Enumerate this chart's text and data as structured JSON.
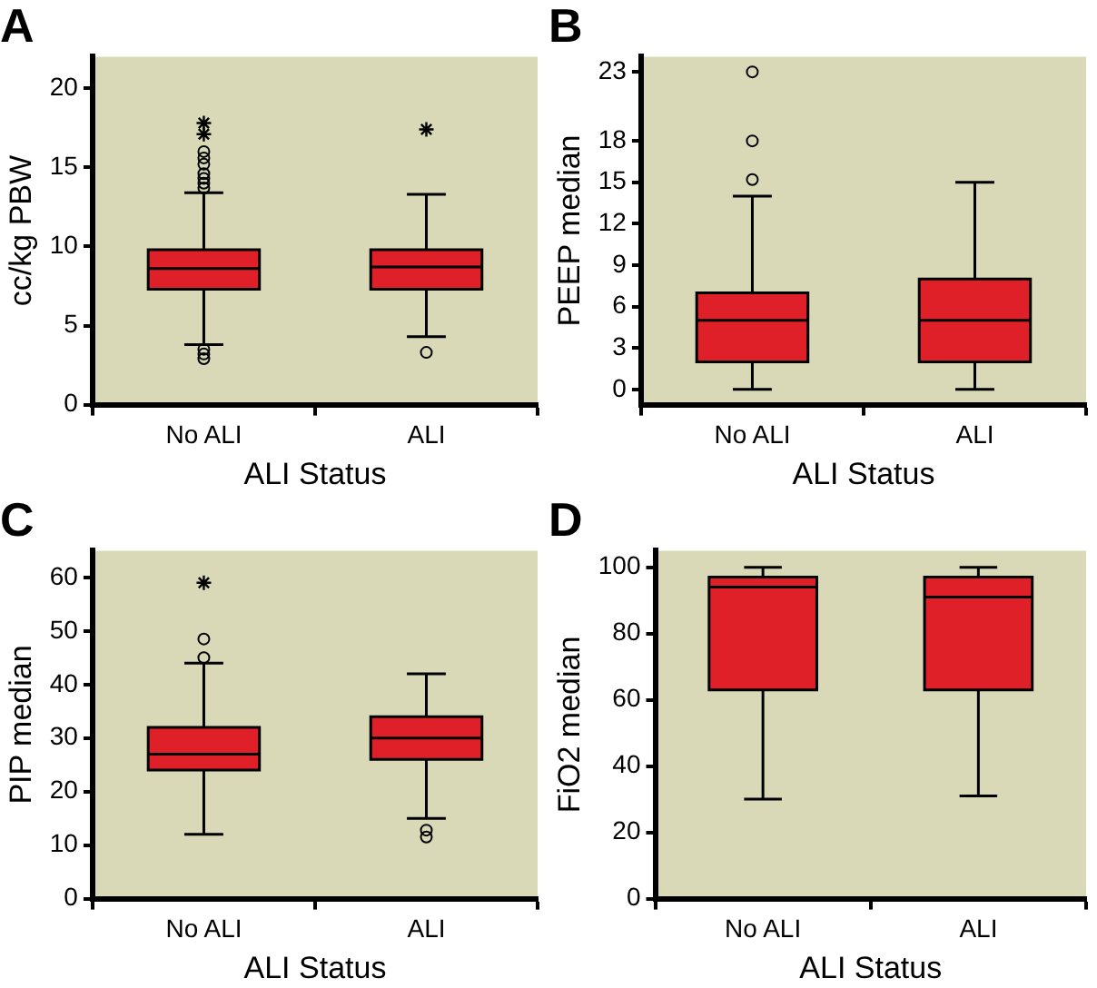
{
  "chart_data": [
    {
      "type": "box",
      "title": "A",
      "xlabel": "ALI Status",
      "ylabel": "cc/kg PBW",
      "categories": [
        "No ALI",
        "ALI"
      ],
      "ylim": [
        0,
        22
      ],
      "yticks": [
        0,
        5,
        10,
        15,
        20
      ],
      "grid": false,
      "marker": "circle",
      "series": [
        {
          "color": "#e02028",
          "boxes": [
            {
              "low": 3.8,
              "q1": 7.3,
              "median": 8.6,
              "q3": 9.8,
              "high": 13.4,
              "outliers": [
                13.7,
                14,
                14.3,
                14.6,
                15.2,
                15.6,
                16,
                3.5,
                3.2,
                2.9
              ]
            },
            {
              "low": 4.3,
              "q1": 7.3,
              "median": 8.7,
              "q3": 9.8,
              "high": 13.3,
              "outliers": [
                3.3
              ]
            }
          ]
        },
        {
          "type": "scatter",
          "marker": "cross",
          "color": "#000000",
          "x": [
            "No ALI",
            "No ALI",
            "ALI"
          ],
          "values": [
            17.1,
            17.8,
            17.4
          ]
        }
      ]
    },
    {
      "type": "box",
      "title": "B",
      "xlabel": "ALI Status",
      "ylabel": "PEEP median",
      "categories": [
        "No ALI",
        "ALI"
      ],
      "ylim": [
        -1.1,
        24.1
      ],
      "yticks": [
        0,
        3,
        6,
        9,
        12,
        15,
        18,
        23
      ],
      "grid": false,
      "marker": "circle",
      "series": [
        {
          "color": "#e02028",
          "boxes": [
            {
              "low": 0,
              "q1": 2,
              "median": 5,
              "q3": 7,
              "high": 14,
              "outliers": [
                15.2,
                18,
                23
              ]
            },
            {
              "low": 0,
              "q1": 2,
              "median": 5,
              "q3": 8,
              "high": 15
            }
          ]
        }
      ]
    },
    {
      "type": "box",
      "title": "C",
      "xlabel": "ALI Status",
      "ylabel": "PIP median",
      "categories": [
        "No ALI",
        "ALI"
      ],
      "ylim": [
        0,
        65
      ],
      "yticks": [
        0,
        10,
        20,
        30,
        40,
        50,
        60
      ],
      "grid": false,
      "marker": "circle",
      "series": [
        {
          "color": "#e02028",
          "boxes": [
            {
              "low": 12,
              "q1": 24,
              "median": 27,
              "q3": 32,
              "high": 44,
              "outliers": [
                45,
                48.5
              ]
            },
            {
              "low": 15,
              "q1": 26,
              "median": 30,
              "q3": 34,
              "high": 42,
              "outliers": [
                11.5,
                12.8
              ]
            }
          ]
        },
        {
          "type": "scatter",
          "marker": "cross",
          "color": "#000000",
          "x": [
            "No ALI"
          ],
          "values": [
            59
          ]
        }
      ]
    },
    {
      "type": "box",
      "title": "D",
      "xlabel": "ALI Status",
      "ylabel": "FiO2 median",
      "categories": [
        "No ALI",
        "ALI"
      ],
      "ylim": [
        0,
        105
      ],
      "yticks": [
        0,
        20,
        40,
        60,
        80,
        100
      ],
      "grid": false,
      "series": [
        {
          "color": "#e02028",
          "boxes": [
            {
              "low": 30,
              "q1": 63,
              "median": 94,
              "q3": 97,
              "high": 100
            },
            {
              "low": 31,
              "q1": 63,
              "median": 91,
              "q3": 97,
              "high": 100
            }
          ]
        }
      ]
    }
  ]
}
